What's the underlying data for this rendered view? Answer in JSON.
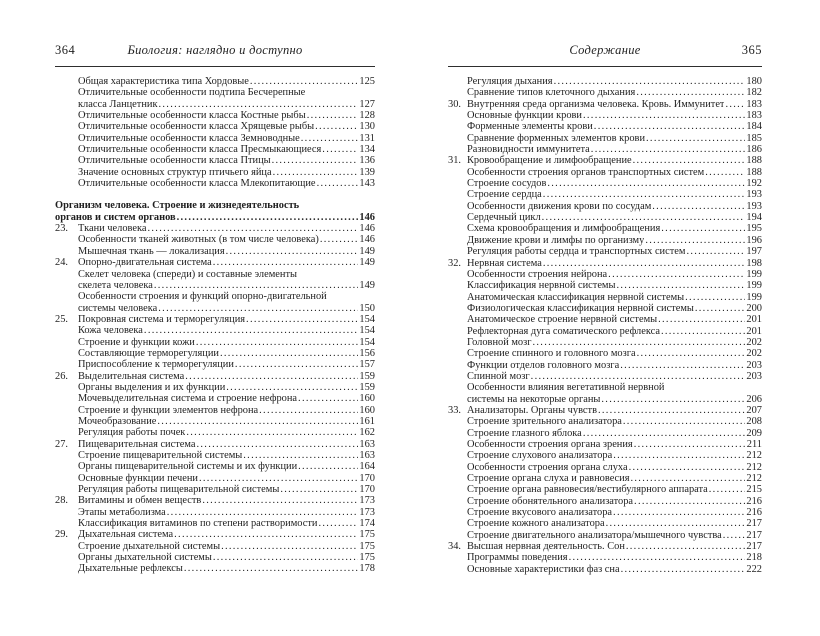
{
  "colors": {
    "background": "#ffffff",
    "text": "#1f1f1f",
    "rule": "#2e2e2e"
  },
  "left_page": {
    "page_number": "364",
    "running_title": "Биология: наглядно и доступно",
    "entries": [
      {
        "text": "Общая характеристика типа Хордовые",
        "page": "125"
      },
      {
        "text": "Отличительные особенности подтипа Бесчерепные",
        "cont": "класса Ланцетник",
        "page": "127"
      },
      {
        "text": "Отличительные особенности класса Костные рыбы",
        "page": "128"
      },
      {
        "text": "Отличительные особенности класса Хрящевые рыбы",
        "page": "130"
      },
      {
        "text": "Отличительные особенности класса Земноводные",
        "page": "131"
      },
      {
        "text": "Отличительные особенности класса Пресмыкающиеся",
        "page": "134"
      },
      {
        "text": "Отличительные особенности класса Птицы",
        "page": "136"
      },
      {
        "text": "Значение основных структур птичьего яйца",
        "page": "139"
      },
      {
        "text": "Отличительные особенности класса Млекопитающие",
        "page": "143"
      },
      {
        "text": "Организм человека. Строение и жизнедеятельность",
        "cont": "органов и систем органов",
        "page": "146",
        "bold": true,
        "gap_before": true
      },
      {
        "num": "23.",
        "text": "Ткани человека",
        "page": "146"
      },
      {
        "text": "Особенности тканей животных (в том числе человека)",
        "page": "146"
      },
      {
        "text": "Мышечная ткань — локализация",
        "page": "149"
      },
      {
        "num": "24.",
        "text": "Опорно-двигательная система",
        "page": "149"
      },
      {
        "text": "Скелет человека (спереди) и составные элементы",
        "cont": "скелета человека",
        "page": "149"
      },
      {
        "text": "Особенности строения и функций опорно-двигательной",
        "cont": "системы человека",
        "page": "150"
      },
      {
        "num": "25.",
        "text": "Покровная система и терморегуляция",
        "page": "154"
      },
      {
        "text": "Кожа человека",
        "page": "154"
      },
      {
        "text": "Строение и функции кожи",
        "page": "154"
      },
      {
        "text": "Составляющие терморегуляции",
        "page": "156"
      },
      {
        "text": "Приспособление к терморегуляции",
        "page": "157"
      },
      {
        "num": "26.",
        "text": "Выделительная система",
        "page": "159"
      },
      {
        "text": "Органы выделения и их функции",
        "page": "159"
      },
      {
        "text": "Мочевыделительная система и строение нефрона",
        "page": "160"
      },
      {
        "text": "Строение и функции элементов нефрона",
        "page": "160"
      },
      {
        "text": "Мочеобразование",
        "page": "161"
      },
      {
        "text": "Регуляция работы почек",
        "page": "162"
      },
      {
        "num": "27.",
        "text": "Пищеварительная система",
        "page": "163"
      },
      {
        "text": "Строение пищеварительной системы",
        "page": "163"
      },
      {
        "text": "Органы пищеварительной системы и их функции",
        "page": "164"
      },
      {
        "text": "Основные функции печени",
        "page": "170"
      },
      {
        "text": "Регуляция работы пищеварительной системы",
        "page": "170"
      },
      {
        "num": "28.",
        "text": "Витамины и обмен веществ",
        "page": "173"
      },
      {
        "text": "Этапы метаболизма",
        "page": "173"
      },
      {
        "text": "Классификация витаминов по степени растворимости",
        "page": "174"
      },
      {
        "num": "29.",
        "text": "Дыхательная система",
        "page": "175"
      },
      {
        "text": "Строение дыхательной системы",
        "page": "175"
      },
      {
        "text": "Органы дыхательной системы",
        "page": "175"
      },
      {
        "text": "Дыхательные рефлексы",
        "page": "178"
      }
    ]
  },
  "right_page": {
    "page_number": "365",
    "running_title": "Содержание",
    "entries": [
      {
        "text": "Регуляция дыхания",
        "page": "180"
      },
      {
        "text": "Сравнение типов клеточного дыхания",
        "page": "182"
      },
      {
        "num": "30.",
        "text": "Внутренняя среда организма человека. Кровь. Иммунитет",
        "page": "183"
      },
      {
        "text": "Основные функции крови",
        "page": "183"
      },
      {
        "text": "Форменные элементы крови",
        "page": "184"
      },
      {
        "text": "Сравнение форменных элементов крови",
        "page": "185"
      },
      {
        "text": "Разновидности иммунитета",
        "page": "186"
      },
      {
        "num": "31.",
        "text": "Кровообращение и лимфообращение",
        "page": "188"
      },
      {
        "text": "Особенности строения органов транспортных систем",
        "page": "188"
      },
      {
        "text": "Строение сосудов",
        "page": "192"
      },
      {
        "text": "Строение сердца",
        "page": "193"
      },
      {
        "text": "Особенности движения крови по сосудам",
        "page": "193"
      },
      {
        "text": "Сердечный цикл",
        "page": "194"
      },
      {
        "text": "Схема кровообращения и лимфообращения",
        "page": "195"
      },
      {
        "text": "Движение крови и лимфы по организму",
        "page": "196"
      },
      {
        "text": "Регуляция работы сердца и транспортных систем",
        "page": "197"
      },
      {
        "num": "32.",
        "text": "Нервная система",
        "page": "198"
      },
      {
        "text": "Особенности строения нейрона",
        "page": "199"
      },
      {
        "text": "Классификация нервной системы",
        "page": "199"
      },
      {
        "text": "Анатомическая классификация нервной системы",
        "page": "199"
      },
      {
        "text": "Физиологическая классификация нервной системы",
        "page": "200"
      },
      {
        "text": "Анатомическое строение нервной системы",
        "page": "201"
      },
      {
        "text": "Рефлекторная дуга соматического рефлекса",
        "page": "201"
      },
      {
        "text": "Головной мозг",
        "page": "202"
      },
      {
        "text": "Строение спинного и головного мозга",
        "page": "202"
      },
      {
        "text": "Функции отделов головного мозга",
        "page": "203"
      },
      {
        "text": "Спинной мозг",
        "page": "203"
      },
      {
        "text": "Особенности влияния вегетативной нервной",
        "cont": "системы на некоторые органы",
        "page": "206"
      },
      {
        "num": "33.",
        "text": "Анализаторы. Органы чувств",
        "page": "207"
      },
      {
        "text": "Строение зрительного анализатора",
        "page": "208"
      },
      {
        "text": "Строение глазного яблока",
        "page": "209"
      },
      {
        "text": "Особенности строения органа зрения",
        "page": "211"
      },
      {
        "text": "Строение слухового анализатора",
        "page": "212"
      },
      {
        "text": "Особенности строения органа слуха",
        "page": "212"
      },
      {
        "text": "Строение органа слуха и равновесия",
        "page": "212"
      },
      {
        "text": "Строение органа равновесия/вестибулярного аппарата",
        "page": "215"
      },
      {
        "text": "Строение обонятельного анализатора",
        "page": "216"
      },
      {
        "text": "Строение вкусового анализатора",
        "page": "216"
      },
      {
        "text": "Строение кожного анализатора",
        "page": "217"
      },
      {
        "text": "Строение двигательного анализатора/мышечного чувства",
        "page": "217"
      },
      {
        "num": "34.",
        "text": "Высшая нервная деятельность. Сон",
        "page": "217"
      },
      {
        "text": "Программы поведения",
        "page": "218"
      },
      {
        "text": "Основные характеристики фаз сна",
        "page": "222"
      }
    ]
  }
}
